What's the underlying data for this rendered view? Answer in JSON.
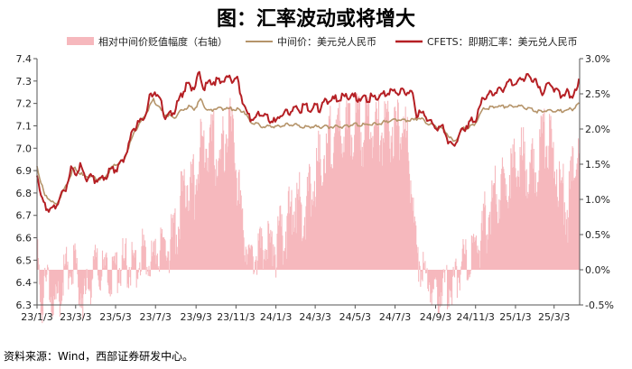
{
  "title": "图：汇率波动或将增大",
  "source": "资料来源：Wind，西部证券研发中心。",
  "chart_data": {
    "type": "line",
    "x_unit": "date",
    "xticks": [
      "23/1/3",
      "23/3/3",
      "23/5/3",
      "23/7/3",
      "23/9/3",
      "23/11/3",
      "24/1/3",
      "24/3/3",
      "24/5/3",
      "24/7/3",
      "24/9/3",
      "24/11/3",
      "25/1/3",
      "25/3/3"
    ],
    "ylim": [
      6.3,
      7.4
    ],
    "yticks": [
      "6.3",
      "6.4",
      "6.5",
      "6.6",
      "6.7",
      "6.8",
      "6.9",
      "7.0",
      "7.1",
      "7.2",
      "7.3",
      "7.4"
    ],
    "y2lim": [
      -0.5,
      3.0
    ],
    "y2ticks": [
      "-0.5%",
      "0.0%",
      "0.5%",
      "1.0%",
      "1.5%",
      "2.0%",
      "2.5%",
      "3.0%"
    ],
    "grid": false,
    "legend_position": "top",
    "series": [
      {
        "name": "相对中间价贬值幅度（右轴）",
        "type": "area",
        "axis": "right",
        "color": "#f6b8bd",
        "points": [
          [
            "2023-01-03",
            0.4
          ],
          [
            "2023-01-10",
            -0.3
          ],
          [
            "2023-01-20",
            0.1
          ],
          [
            "2023-02-01",
            -0.4
          ],
          [
            "2023-02-15",
            0.2
          ],
          [
            "2023-03-01",
            0.3
          ],
          [
            "2023-03-15",
            -0.3
          ],
          [
            "2023-04-01",
            0.2
          ],
          [
            "2023-04-15",
            0.1
          ],
          [
            "2023-05-01",
            0.1
          ],
          [
            "2023-05-15",
            0.3
          ],
          [
            "2023-06-01",
            0.2
          ],
          [
            "2023-06-15",
            0.5
          ],
          [
            "2023-07-01",
            0.3
          ],
          [
            "2023-07-15",
            0.6
          ],
          [
            "2023-08-01",
            0.6
          ],
          [
            "2023-08-10",
            1.2
          ],
          [
            "2023-08-20",
            1.6
          ],
          [
            "2023-09-01",
            1.4
          ],
          [
            "2023-09-10",
            1.9
          ],
          [
            "2023-09-20",
            2.1
          ],
          [
            "2023-10-01",
            2.0
          ],
          [
            "2023-10-10",
            1.7
          ],
          [
            "2023-10-20",
            2.3
          ],
          [
            "2023-11-01",
            2.1
          ],
          [
            "2023-11-10",
            1.0
          ],
          [
            "2023-11-20",
            0.5
          ],
          [
            "2023-12-01",
            0.4
          ],
          [
            "2023-12-15",
            0.5
          ],
          [
            "2024-01-03",
            0.6
          ],
          [
            "2024-01-20",
            0.9
          ],
          [
            "2024-02-01",
            1.3
          ],
          [
            "2024-02-15",
            1.1
          ],
          [
            "2024-03-01",
            1.6
          ],
          [
            "2024-03-15",
            1.9
          ],
          [
            "2024-04-01",
            2.2
          ],
          [
            "2024-04-15",
            2.2
          ],
          [
            "2024-05-01",
            2.3
          ],
          [
            "2024-05-15",
            2.2
          ],
          [
            "2024-06-01",
            2.3
          ],
          [
            "2024-06-15",
            2.2
          ],
          [
            "2024-07-01",
            2.3
          ],
          [
            "2024-07-15",
            2.3
          ],
          [
            "2024-07-25",
            1.8
          ],
          [
            "2024-08-05",
            0.4
          ],
          [
            "2024-08-20",
            0.1
          ],
          [
            "2024-09-01",
            -0.2
          ],
          [
            "2024-09-15",
            -0.1
          ],
          [
            "2024-10-01",
            0.0
          ],
          [
            "2024-10-15",
            0.3
          ],
          [
            "2024-11-01",
            0.4
          ],
          [
            "2024-11-15",
            0.8
          ],
          [
            "2024-12-01",
            1.3
          ],
          [
            "2024-12-15",
            1.5
          ],
          [
            "2025-01-03",
            1.7
          ],
          [
            "2025-01-15",
            1.8
          ],
          [
            "2025-02-01",
            1.6
          ],
          [
            "2025-02-15",
            2.2
          ],
          [
            "2025-03-01",
            1.9
          ],
          [
            "2025-03-15",
            1.4
          ],
          [
            "2025-03-25",
            1.1
          ],
          [
            "2025-04-05",
            1.9
          ],
          [
            "2025-04-11",
            1.8
          ]
        ]
      },
      {
        "name": "中间价：美元兑人民币",
        "type": "line",
        "axis": "left",
        "color": "#b5946a",
        "points": [
          [
            "2023-01-03",
            6.92
          ],
          [
            "2023-01-15",
            6.79
          ],
          [
            "2023-02-01",
            6.75
          ],
          [
            "2023-02-15",
            6.83
          ],
          [
            "2023-03-01",
            6.92
          ],
          [
            "2023-03-15",
            6.88
          ],
          [
            "2023-04-01",
            6.87
          ],
          [
            "2023-04-15",
            6.87
          ],
          [
            "2023-05-01",
            6.93
          ],
          [
            "2023-05-15",
            6.95
          ],
          [
            "2023-06-01",
            7.08
          ],
          [
            "2023-06-15",
            7.14
          ],
          [
            "2023-06-30",
            7.22
          ],
          [
            "2023-07-15",
            7.16
          ],
          [
            "2023-08-01",
            7.14
          ],
          [
            "2023-08-15",
            7.18
          ],
          [
            "2023-08-25",
            7.19
          ],
          [
            "2023-09-01",
            7.18
          ],
          [
            "2023-09-10",
            7.22
          ],
          [
            "2023-09-20",
            7.17
          ],
          [
            "2023-10-01",
            7.18
          ],
          [
            "2023-10-15",
            7.18
          ],
          [
            "2023-11-01",
            7.18
          ],
          [
            "2023-11-15",
            7.17
          ],
          [
            "2023-11-25",
            7.12
          ],
          [
            "2023-12-15",
            7.1
          ],
          [
            "2024-01-03",
            7.1
          ],
          [
            "2024-01-20",
            7.11
          ],
          [
            "2024-02-01",
            7.11
          ],
          [
            "2024-02-15",
            7.1
          ],
          [
            "2024-03-01",
            7.1
          ],
          [
            "2024-03-15",
            7.1
          ],
          [
            "2024-04-01",
            7.1
          ],
          [
            "2024-04-15",
            7.1
          ],
          [
            "2024-05-01",
            7.11
          ],
          [
            "2024-05-15",
            7.11
          ],
          [
            "2024-06-01",
            7.11
          ],
          [
            "2024-06-15",
            7.12
          ],
          [
            "2024-07-01",
            7.13
          ],
          [
            "2024-07-20",
            7.13
          ],
          [
            "2024-08-01",
            7.13
          ],
          [
            "2024-08-10",
            7.14
          ],
          [
            "2024-08-20",
            7.12
          ],
          [
            "2024-09-01",
            7.1
          ],
          [
            "2024-09-15",
            7.09
          ],
          [
            "2024-10-01",
            7.03
          ],
          [
            "2024-10-15",
            7.09
          ],
          [
            "2024-11-01",
            7.11
          ],
          [
            "2024-11-15",
            7.18
          ],
          [
            "2024-12-01",
            7.19
          ],
          [
            "2024-12-15",
            7.19
          ],
          [
            "2025-01-03",
            7.19
          ],
          [
            "2025-01-15",
            7.19
          ],
          [
            "2025-02-01",
            7.17
          ],
          [
            "2025-02-15",
            7.17
          ],
          [
            "2025-03-01",
            7.17
          ],
          [
            "2025-03-15",
            7.17
          ],
          [
            "2025-04-01",
            7.18
          ],
          [
            "2025-04-11",
            7.21
          ]
        ]
      },
      {
        "name": "CFETS：即期汇率：美元兑人民币",
        "type": "line",
        "axis": "left",
        "color": "#b51f24",
        "points": [
          [
            "2023-01-03",
            6.9
          ],
          [
            "2023-01-10",
            6.78
          ],
          [
            "2023-01-18",
            6.74
          ],
          [
            "2023-01-28",
            6.74
          ],
          [
            "2023-02-05",
            6.78
          ],
          [
            "2023-02-15",
            6.82
          ],
          [
            "2023-02-25",
            6.92
          ],
          [
            "2023-03-03",
            6.9
          ],
          [
            "2023-03-10",
            6.93
          ],
          [
            "2023-03-20",
            6.88
          ],
          [
            "2023-04-01",
            6.87
          ],
          [
            "2023-04-15",
            6.88
          ],
          [
            "2023-04-25",
            6.91
          ],
          [
            "2023-05-05",
            6.92
          ],
          [
            "2023-05-15",
            6.96
          ],
          [
            "2023-05-31",
            7.1
          ],
          [
            "2023-06-15",
            7.14
          ],
          [
            "2023-06-25",
            7.24
          ],
          [
            "2023-07-01",
            7.27
          ],
          [
            "2023-07-10",
            7.23
          ],
          [
            "2023-07-18",
            7.15
          ],
          [
            "2023-08-01",
            7.18
          ],
          [
            "2023-08-10",
            7.24
          ],
          [
            "2023-08-20",
            7.3
          ],
          [
            "2023-08-30",
            7.28
          ],
          [
            "2023-09-08",
            7.34
          ],
          [
            "2023-09-15",
            7.28
          ],
          [
            "2023-09-25",
            7.31
          ],
          [
            "2023-10-05",
            7.31
          ],
          [
            "2023-10-15",
            7.31
          ],
          [
            "2023-10-25",
            7.32
          ],
          [
            "2023-11-05",
            7.31
          ],
          [
            "2023-11-12",
            7.24
          ],
          [
            "2023-11-20",
            7.15
          ],
          [
            "2023-11-30",
            7.14
          ],
          [
            "2023-12-10",
            7.16
          ],
          [
            "2023-12-20",
            7.15
          ],
          [
            "2024-01-03",
            7.12
          ],
          [
            "2024-01-10",
            7.16
          ],
          [
            "2024-01-20",
            7.17
          ],
          [
            "2024-02-01",
            7.18
          ],
          [
            "2024-02-15",
            7.19
          ],
          [
            "2024-03-01",
            7.19
          ],
          [
            "2024-03-10",
            7.19
          ],
          [
            "2024-03-20",
            7.22
          ],
          [
            "2024-04-01",
            7.23
          ],
          [
            "2024-04-15",
            7.24
          ],
          [
            "2024-05-01",
            7.24
          ],
          [
            "2024-05-15",
            7.23
          ],
          [
            "2024-06-01",
            7.24
          ],
          [
            "2024-06-15",
            7.25
          ],
          [
            "2024-07-01",
            7.26
          ],
          [
            "2024-07-15",
            7.27
          ],
          [
            "2024-07-25",
            7.26
          ],
          [
            "2024-07-30",
            7.24
          ],
          [
            "2024-08-05",
            7.16
          ],
          [
            "2024-08-15",
            7.17
          ],
          [
            "2024-08-25",
            7.13
          ],
          [
            "2024-09-01",
            7.11
          ],
          [
            "2024-09-15",
            7.1
          ],
          [
            "2024-09-25",
            7.02
          ],
          [
            "2024-10-05",
            7.04
          ],
          [
            "2024-10-15",
            7.1
          ],
          [
            "2024-10-25",
            7.12
          ],
          [
            "2024-11-05",
            7.15
          ],
          [
            "2024-11-15",
            7.24
          ],
          [
            "2024-11-25",
            7.25
          ],
          [
            "2024-12-05",
            7.27
          ],
          [
            "2024-12-15",
            7.28
          ],
          [
            "2024-12-25",
            7.3
          ],
          [
            "2025-01-03",
            7.3
          ],
          [
            "2025-01-15",
            7.33
          ],
          [
            "2025-01-25",
            7.32
          ],
          [
            "2025-02-01",
            7.32
          ],
          [
            "2025-02-10",
            7.26
          ],
          [
            "2025-02-20",
            7.28
          ],
          [
            "2025-03-01",
            7.29
          ],
          [
            "2025-03-10",
            7.25
          ],
          [
            "2025-03-20",
            7.26
          ],
          [
            "2025-04-01",
            7.25
          ],
          [
            "2025-04-08",
            7.27
          ],
          [
            "2025-04-11",
            7.32
          ]
        ]
      }
    ]
  }
}
